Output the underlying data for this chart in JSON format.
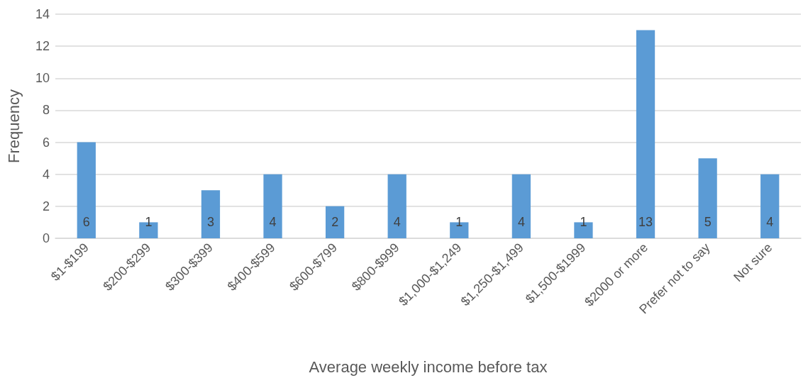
{
  "chart_data": {
    "type": "bar",
    "xlabel": "Average weekly income before tax",
    "ylabel": "Frequency",
    "categories": [
      "$1-$199",
      "$200-$299",
      "$300-$399",
      "$400-$599",
      "$600-$799",
      "$800-$999",
      "$1,000-$1,249",
      "$1,250-$1,499",
      "$1,500-$1999",
      "$2000 or more",
      "Prefer not to say",
      "Not sure"
    ],
    "values": [
      6,
      1,
      3,
      4,
      2,
      4,
      1,
      4,
      1,
      13,
      5,
      4
    ],
    "color": "#5b9bd5",
    "ylim": [
      0,
      14
    ],
    "yticks": [
      0,
      2,
      4,
      6,
      8,
      10,
      12,
      14
    ],
    "grid": "y",
    "data_labels": true
  }
}
